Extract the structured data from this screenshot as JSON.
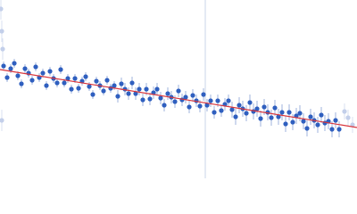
{
  "chart_data": {
    "type": "scatter",
    "xlim": [
      0,
      400
    ],
    "ylim": [
      0,
      200
    ],
    "vline": 230,
    "vline_color": "#c8d4e8",
    "series": [
      {
        "color": "#2f5fbf",
        "error_color": "#9fb3dd",
        "x": [
          4,
          8,
          12,
          16,
          20,
          24,
          28,
          32,
          36,
          40,
          44,
          48,
          52,
          56,
          60,
          64,
          68,
          72,
          76,
          80,
          84,
          88,
          92,
          96,
          100,
          104,
          108,
          112,
          116,
          120,
          124,
          128,
          132,
          136,
          140,
          144,
          148,
          152,
          156,
          160,
          164,
          168,
          172,
          176,
          180,
          184,
          188,
          192,
          196,
          200,
          204,
          208,
          212,
          216,
          220,
          224,
          228,
          232,
          236,
          240,
          244,
          248,
          252,
          256,
          260,
          264,
          268,
          272,
          276,
          280,
          284,
          288,
          292,
          296,
          300,
          304,
          308,
          312,
          316,
          320,
          324,
          328,
          332,
          336,
          340,
          344,
          348,
          352,
          356,
          360,
          364,
          368,
          372,
          376,
          380
        ],
        "values": [
          126,
          113,
          123,
          129,
          115,
          106,
          123,
          118,
          110,
          125,
          113,
          118,
          104,
          120,
          112,
          107,
          122,
          107,
          112,
          100,
          112,
          101,
          109,
          114,
          103,
          94,
          109,
          104,
          98,
          110,
          101,
          104,
          92,
          106,
          100,
          95,
          107,
          95,
          100,
          88,
          100,
          89,
          96,
          100,
          90,
          82,
          95,
          91,
          86,
          98,
          88,
          91,
          80,
          93,
          87,
          81,
          94,
          82,
          87,
          74,
          87,
          76,
          83,
          87,
          77,
          69,
          82,
          78,
          73,
          85,
          75,
          78,
          67,
          80,
          74,
          68,
          79,
          69,
          74,
          61,
          74,
          63,
          70,
          73,
          64,
          56,
          69,
          65,
          60,
          71,
          62,
          64,
          55,
          65,
          55
        ],
        "errors": [
          5,
          5,
          5,
          5,
          5,
          5,
          5,
          5,
          5,
          5,
          5,
          5,
          5,
          5,
          5,
          5,
          5,
          5,
          5,
          5,
          5,
          5,
          5,
          5,
          5,
          5,
          5,
          5,
          5,
          5,
          5,
          5,
          7,
          7,
          7,
          7,
          7,
          7,
          7,
          7,
          7,
          7,
          7,
          7,
          7,
          7,
          7,
          7,
          7,
          7,
          7,
          7,
          7,
          7,
          7,
          7,
          7,
          7,
          7,
          7,
          7,
          7,
          7,
          7,
          9,
          9,
          9,
          9,
          9,
          9,
          9,
          9,
          9,
          9,
          9,
          9,
          9,
          9,
          9,
          9,
          9,
          9,
          9,
          9,
          9,
          9,
          9,
          9,
          9,
          9,
          9,
          9,
          9,
          9,
          9
        ]
      },
      {
        "color": "#c3cfea",
        "error_color": "#d8e0f2",
        "x": [
          1,
          2,
          3,
          2,
          386,
          390,
          395
        ],
        "values": [
          190,
          165,
          145,
          65,
          75,
          68,
          60
        ],
        "errors": [
          12,
          12,
          12,
          12,
          9,
          9,
          9
        ]
      }
    ],
    "fit": {
      "color": "#d9343a",
      "x": [
        0,
        400
      ],
      "values": [
        122,
        57
      ]
    }
  }
}
